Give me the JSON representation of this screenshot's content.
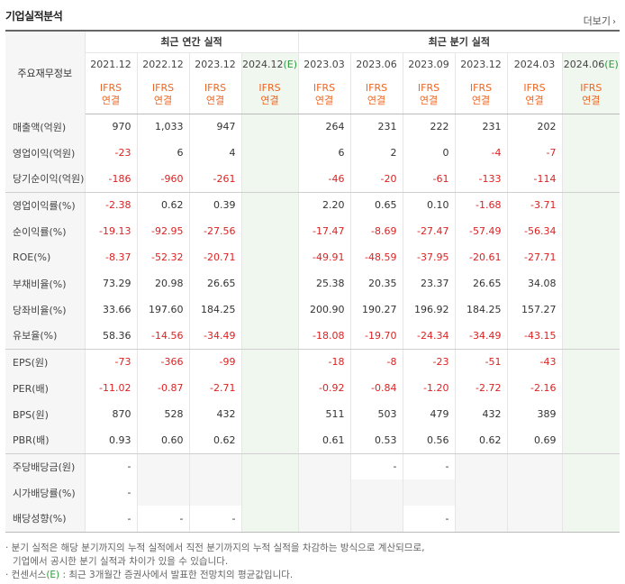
{
  "header": {
    "title": "기업실적분석",
    "more_label": "더보기"
  },
  "table": {
    "corner_label": "주요재무정보",
    "group_annual": "최근 연간 실적",
    "group_quarterly": "최근 분기 실적",
    "periods": [
      "2021.12",
      "2022.12",
      "2023.12",
      "2024.12",
      "2023.03",
      "2023.06",
      "2023.09",
      "2023.12",
      "2024.03",
      "2024.06"
    ],
    "estimate_mark": "(E)",
    "basis_line1": "IFRS",
    "basis_line2": "연결",
    "rows": [
      {
        "label": "매출액(억원)",
        "values": [
          "970",
          "1,033",
          "947",
          "",
          "264",
          "231",
          "222",
          "231",
          "202",
          ""
        ]
      },
      {
        "label": "영업이익(억원)",
        "values": [
          "-23",
          "6",
          "4",
          "",
          "6",
          "2",
          "0",
          "-4",
          "-7",
          ""
        ]
      },
      {
        "label": "당기순이익(억원)",
        "values": [
          "-186",
          "-960",
          "-261",
          "",
          "-46",
          "-20",
          "-61",
          "-133",
          "-114",
          ""
        ]
      },
      {
        "label": "영업이익률(%)",
        "values": [
          "-2.38",
          "0.62",
          "0.39",
          "",
          "2.20",
          "0.65",
          "0.10",
          "-1.68",
          "-3.71",
          ""
        ]
      },
      {
        "label": "순이익률(%)",
        "values": [
          "-19.13",
          "-92.95",
          "-27.56",
          "",
          "-17.47",
          "-8.69",
          "-27.47",
          "-57.49",
          "-56.34",
          ""
        ]
      },
      {
        "label": "ROE(%)",
        "values": [
          "-8.37",
          "-52.32",
          "-20.71",
          "",
          "-49.91",
          "-48.59",
          "-37.95",
          "-20.61",
          "-27.71",
          ""
        ]
      },
      {
        "label": "부채비율(%)",
        "values": [
          "73.29",
          "20.98",
          "26.65",
          "",
          "25.38",
          "20.35",
          "23.37",
          "26.65",
          "34.08",
          ""
        ]
      },
      {
        "label": "당좌비율(%)",
        "values": [
          "33.66",
          "197.60",
          "184.25",
          "",
          "200.90",
          "190.27",
          "196.92",
          "184.25",
          "157.27",
          ""
        ]
      },
      {
        "label": "유보율(%)",
        "values": [
          "58.36",
          "-14.56",
          "-34.49",
          "",
          "-18.08",
          "-19.70",
          "-24.34",
          "-34.49",
          "-43.15",
          ""
        ]
      },
      {
        "label": "EPS(원)",
        "values": [
          "-73",
          "-366",
          "-99",
          "",
          "-18",
          "-8",
          "-23",
          "-51",
          "-43",
          ""
        ]
      },
      {
        "label": "PER(배)",
        "values": [
          "-11.02",
          "-0.87",
          "-2.71",
          "",
          "-0.92",
          "-0.84",
          "-1.20",
          "-2.72",
          "-2.16",
          ""
        ]
      },
      {
        "label": "BPS(원)",
        "values": [
          "870",
          "528",
          "432",
          "",
          "511",
          "503",
          "479",
          "432",
          "389",
          ""
        ]
      },
      {
        "label": "PBR(배)",
        "values": [
          "0.93",
          "0.60",
          "0.62",
          "",
          "0.61",
          "0.53",
          "0.56",
          "0.62",
          "0.69",
          ""
        ]
      },
      {
        "label": "주당배당금(원)",
        "values": [
          "-",
          "",
          "",
          "",
          "",
          "-",
          "-",
          "",
          "",
          ""
        ]
      },
      {
        "label": "시가배당률(%)",
        "values": [
          "-",
          "",
          "",
          "",
          "",
          "",
          "",
          "",
          "",
          ""
        ]
      },
      {
        "label": "배당성향(%)",
        "values": [
          "-",
          "-",
          "-",
          "",
          "",
          "",
          "-",
          "",
          "",
          ""
        ]
      }
    ]
  },
  "notes": {
    "line1": "· 분기 실적은 해당 분기까지의 누적 실적에서 직전 분기까지의 누적 실적을 차감하는 방식으로 계산되므로,",
    "line2": "기업에서 공시한 분기 실적과 차이가 있을 수 있습니다.",
    "line3_prefix": "· 컨센서스",
    "line3_mark": "(E)",
    "line3_suffix": " : 최근 3개월간 증권사에서 발표한 전망치의 평균값입니다."
  },
  "colors": {
    "negative": "#dd2222",
    "basis": "#ee6622",
    "estimate_bg": "#f0f7ef",
    "estimate_mark": "#2e9a3e"
  }
}
